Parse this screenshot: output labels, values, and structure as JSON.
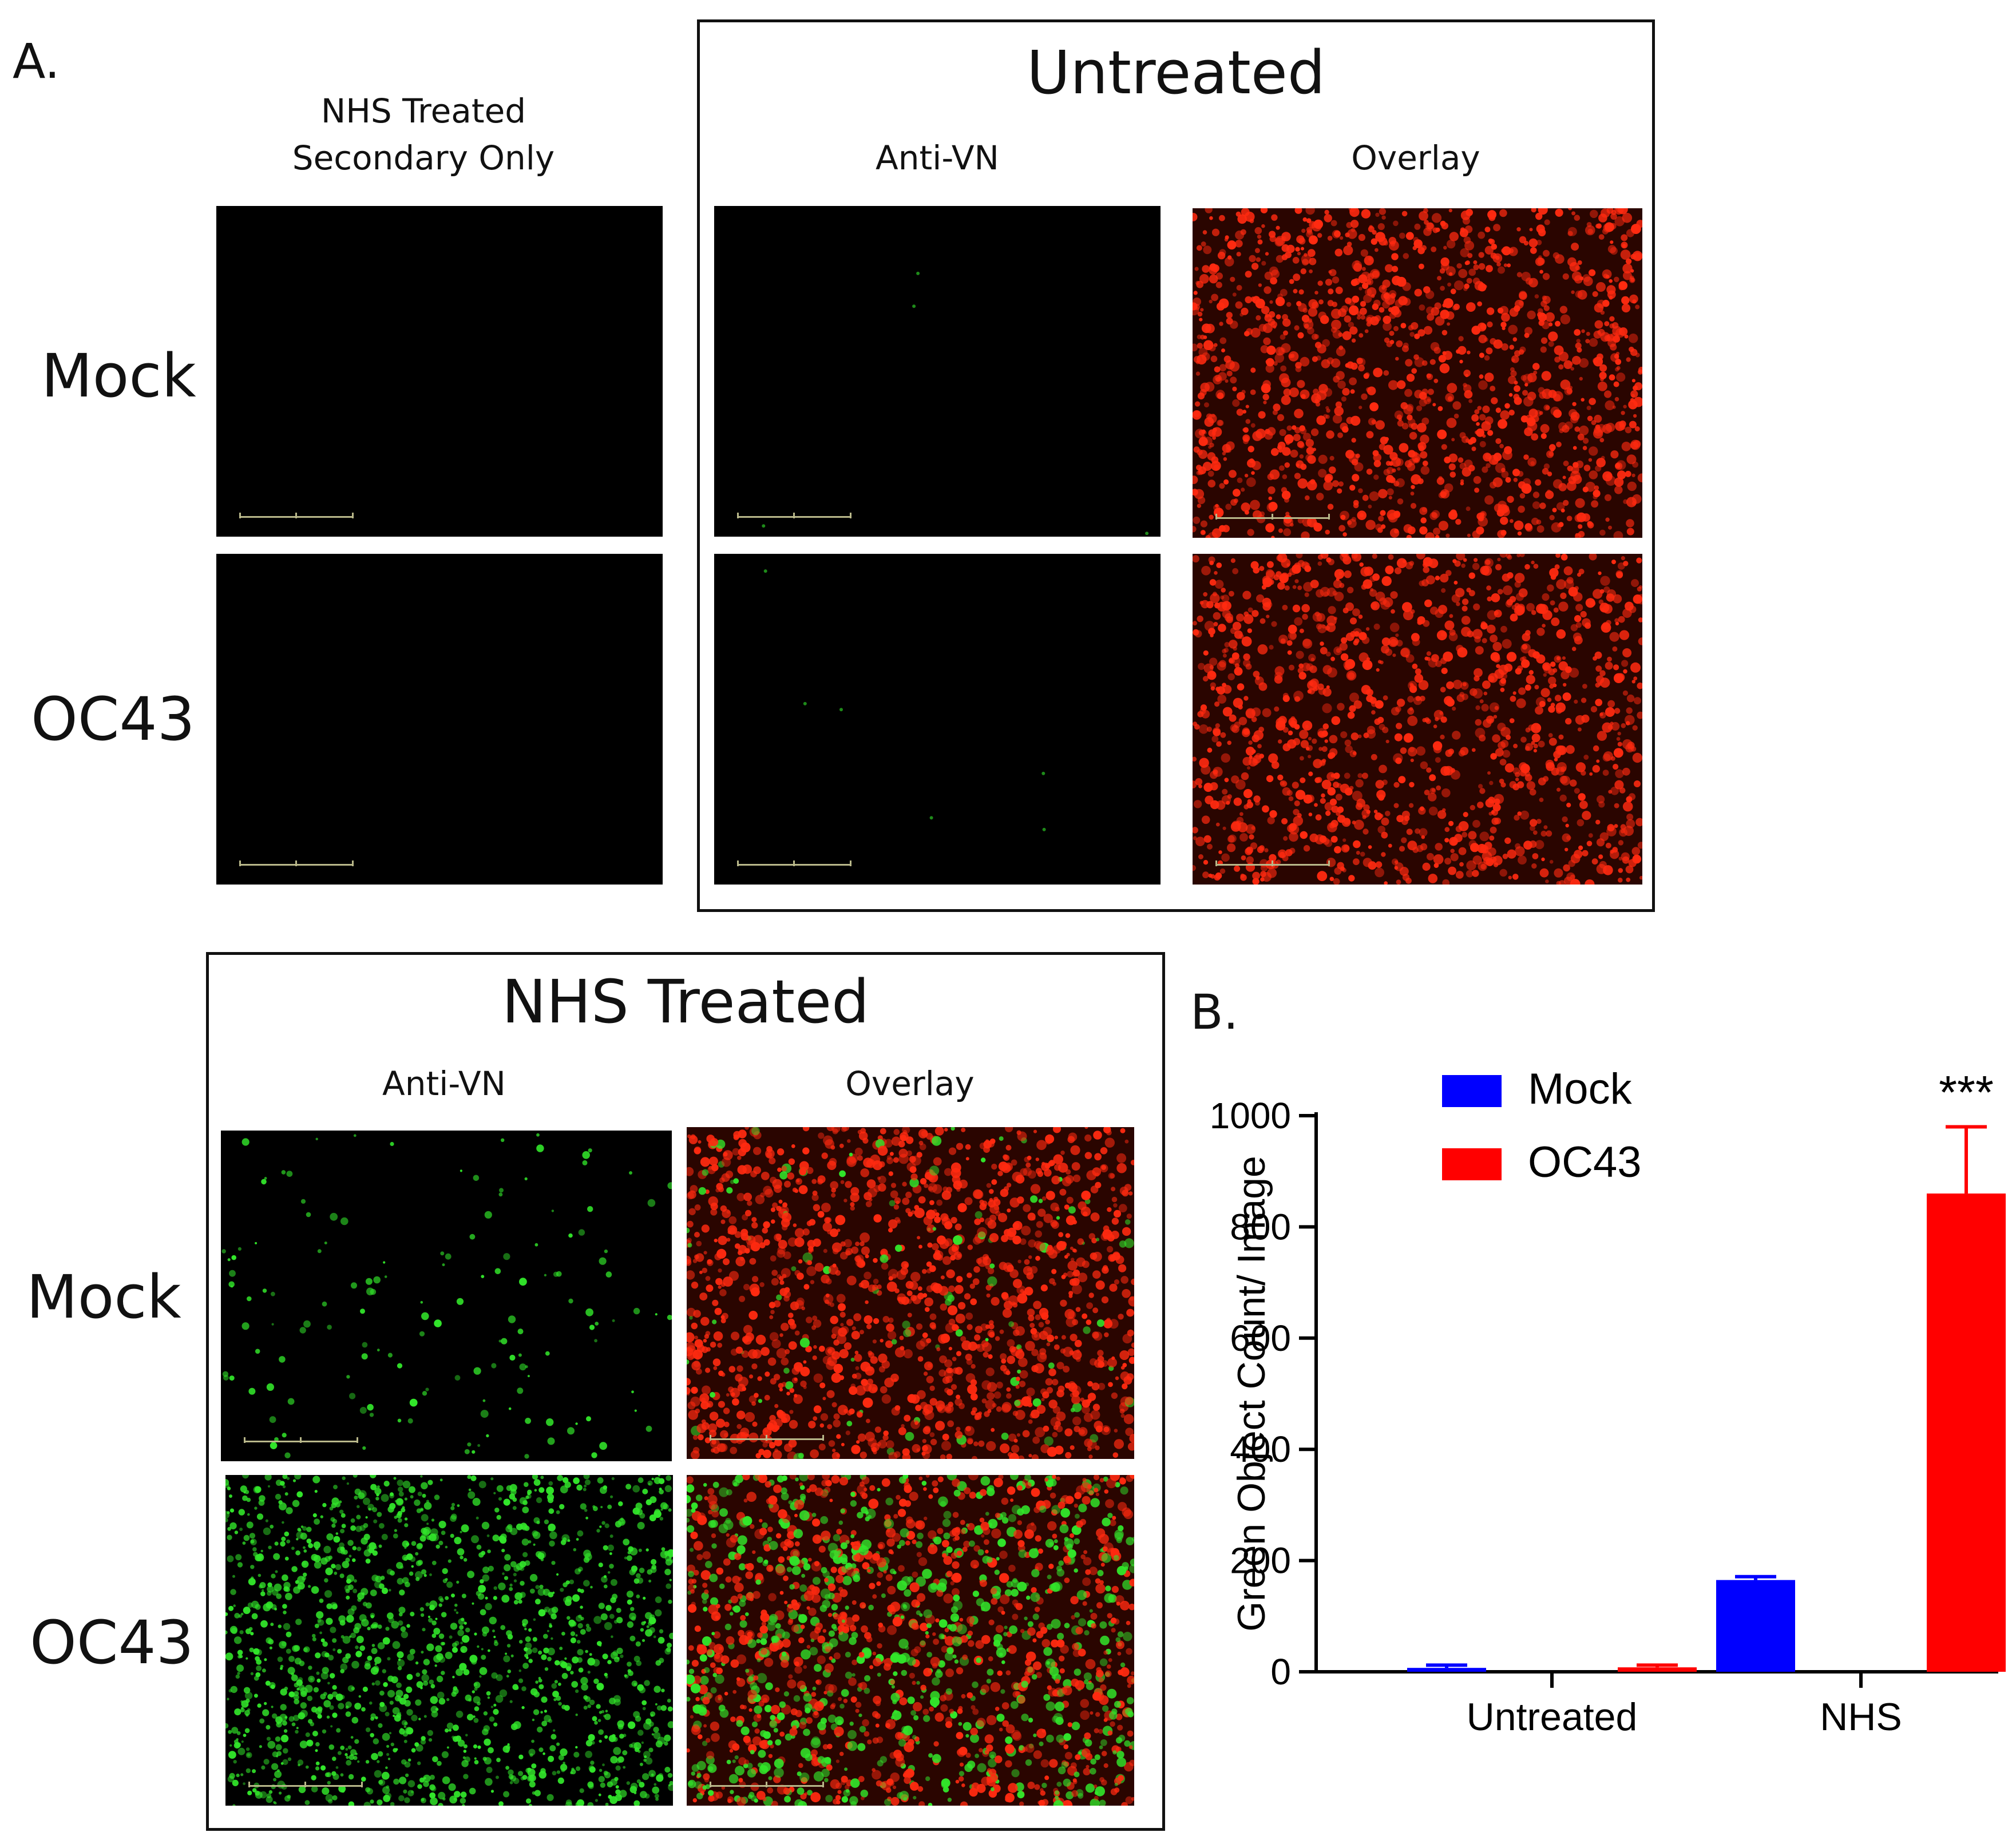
{
  "panel_a": {
    "label": "A.",
    "secondary_header_line1": "NHS Treated",
    "secondary_header_line2": "Secondary Only",
    "untreated_title": "Untreated",
    "nhs_title": "NHS Treated",
    "col_anti_vn": "Anti-VN",
    "col_overlay": "Overlay",
    "row_mock": "Mock",
    "row_oc43": "OC43",
    "image_colors": {
      "background": "#000000",
      "red": "#ff2a10",
      "green": "#32e62a",
      "dark_red": "#2a0500"
    }
  },
  "panel_b": {
    "label": "B.",
    "chart_data": {
      "type": "bar",
      "categories": [
        "Untreated",
        "NHS"
      ],
      "series": [
        {
          "name": "Mock",
          "color": "#0000ff",
          "values": [
            7,
            165
          ],
          "errors": [
            5,
            6
          ]
        },
        {
          "name": "OC43",
          "color": "#ff0000",
          "values": [
            8,
            860
          ],
          "errors": [
            4,
            120
          ]
        }
      ],
      "ylabel": "Green Object Count/ Image",
      "ylim": [
        0,
        1000
      ],
      "yticks": [
        0,
        200,
        400,
        600,
        800,
        1000
      ],
      "annotation": {
        "category": "NHS",
        "series": "OC43",
        "text": "***"
      },
      "legend": "top-left",
      "grid": false
    }
  }
}
